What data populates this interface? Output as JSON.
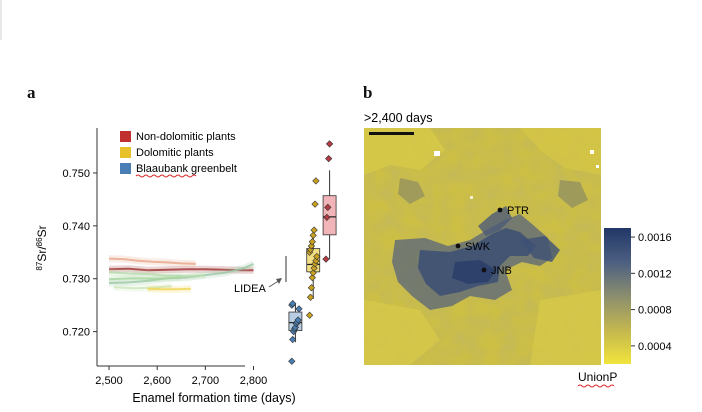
{
  "panels": {
    "a": "a",
    "b": "b"
  },
  "chart_data": [
    {
      "type": "line+box+scatter",
      "ylabel_prefix": "87",
      "ylabel_mid": "Sr/",
      "ylabel_prefix2": "86",
      "ylabel_suffix": "Sr",
      "xlabel": "Enamel formation time (days)",
      "xticks": [
        "2,500",
        "2,600",
        "2,700",
        "2,800"
      ],
      "xtick_values": [
        2500,
        2600,
        2700,
        2800
      ],
      "yticks": [
        "0.720",
        "0.730",
        "0.740",
        "0.750"
      ],
      "ytick_values": [
        0.72,
        0.73,
        0.74,
        0.75
      ],
      "xlim": [
        2475,
        2990
      ],
      "ylim": [
        0.7135,
        0.7585
      ],
      "legend": [
        {
          "name": "Non-dolomitic plants",
          "color": "#c0302e"
        },
        {
          "name": "Dolomitic plants",
          "color": "#e8c12a"
        },
        {
          "name": "Blaaubank greenbelt",
          "color": "#4a7fb5"
        }
      ],
      "annotation": "LIDEA",
      "series": [
        {
          "name": "",
          "color": "#a33a3a",
          "x": [
            2500,
            2540,
            2580,
            2620,
            2660,
            2700,
            2740,
            2780,
            2800
          ],
          "y": [
            0.7318,
            0.7319,
            0.7316,
            0.7317,
            0.7318,
            0.7318,
            0.7317,
            0.7316,
            0.7316
          ]
        },
        {
          "name": "",
          "color": "#e8a98b",
          "x": [
            2500,
            2530,
            2560,
            2590,
            2620,
            2650,
            2680
          ],
          "y": [
            0.7338,
            0.7337,
            0.7334,
            0.7332,
            0.7331,
            0.7329,
            0.7328
          ]
        },
        {
          "name": "",
          "color": "#9cc9a8",
          "x": [
            2500,
            2540,
            2580,
            2620,
            2660,
            2700,
            2740,
            2780,
            2800
          ],
          "y": [
            0.7292,
            0.7293,
            0.7296,
            0.7301,
            0.7302,
            0.7307,
            0.7311,
            0.732,
            0.7328
          ]
        },
        {
          "name": "",
          "color": "#b9dcae",
          "x": [
            2500,
            2540,
            2580,
            2620,
            2660,
            2700
          ],
          "y": [
            0.7312,
            0.731,
            0.7309,
            0.7306,
            0.7305,
            0.7306
          ]
        },
        {
          "name": "",
          "color": "#cde6bd",
          "x": [
            2510,
            2550,
            2590,
            2630
          ],
          "y": [
            0.7284,
            0.7282,
            0.7283,
            0.7286
          ]
        },
        {
          "name": "",
          "color": "#f0d75a",
          "x": [
            2580,
            2610,
            2640,
            2670
          ],
          "y": [
            0.7281,
            0.728,
            0.728,
            0.7281
          ]
        },
        {
          "name": "",
          "color": "#a8d6a0",
          "x": [
            2500,
            2550,
            2600,
            2650
          ],
          "y": [
            0.7299,
            0.7301,
            0.73,
            0.7302
          ]
        }
      ],
      "boxes": [
        {
          "color": "#4a7fb5",
          "fill": "#b9cde2",
          "x": 2887,
          "q1": 0.7202,
          "median": 0.7217,
          "q3": 0.7237,
          "whisker_low": 0.718,
          "whisker_high": 0.7254,
          "points": [
            0.7144,
            0.7185,
            0.72,
            0.7205,
            0.7208,
            0.7215,
            0.7218,
            0.7222,
            0.7243,
            0.725,
            0.7253
          ]
        },
        {
          "color": "#c9a11f",
          "fill": "#f2df84",
          "x": 2924,
          "q1": 0.7313,
          "median": 0.7327,
          "q3": 0.7357,
          "whisker_low": 0.7262,
          "whisker_high": 0.739,
          "points": [
            0.7231,
            0.7265,
            0.7283,
            0.7302,
            0.7311,
            0.732,
            0.7328,
            0.7334,
            0.7342,
            0.735,
            0.7355,
            0.7362,
            0.737,
            0.7382,
            0.7392,
            0.7441,
            0.7485
          ]
        },
        {
          "color": "#b43b43",
          "fill": "#f1b4b8",
          "x": 2958,
          "q1": 0.7383,
          "median": 0.7417,
          "q3": 0.7457,
          "whisker_low": 0.7337,
          "whisker_high": 0.7505,
          "points": [
            0.7337,
            0.7416,
            0.7435,
            0.7527,
            0.7555
          ]
        }
      ]
    },
    {
      "type": "heatmap",
      "title": ">2,400 days",
      "colorbar_label": "UnionP",
      "colorbar_ticks": [
        "0.0004",
        "0.0008",
        "0.0012",
        "0.0016"
      ],
      "colorbar_tick_values": [
        0.0004,
        0.0008,
        0.0012,
        0.0016
      ],
      "colorbar_range": [
        0.0002,
        0.0017
      ],
      "colormap": [
        "#f2e43c",
        "#c3b74f",
        "#8b8e6e",
        "#4c5f82",
        "#213766"
      ],
      "cities": [
        {
          "label": "PTR"
        },
        {
          "label": "SWK"
        },
        {
          "label": "JNB"
        }
      ]
    }
  ]
}
